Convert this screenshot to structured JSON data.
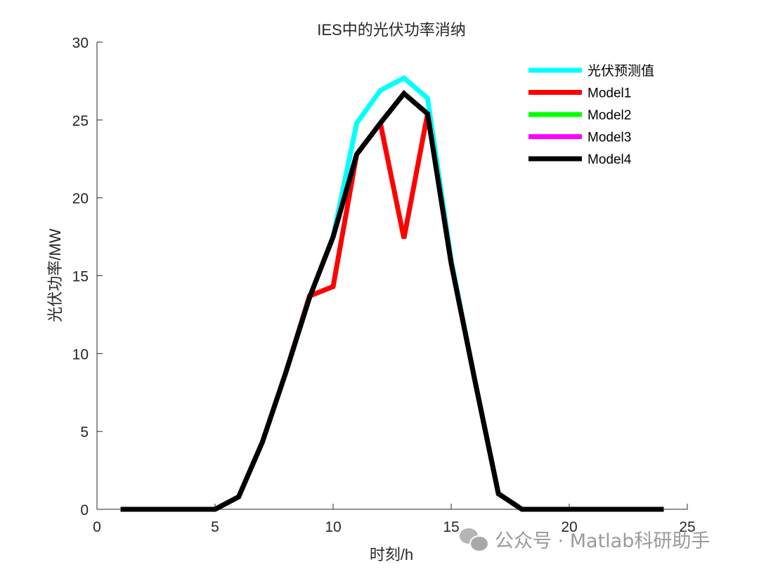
{
  "chart_data": {
    "type": "line",
    "title": "IES中的光伏功率消纳",
    "xlabel": "时刻/h",
    "ylabel": "光伏功率/MW",
    "xlim": [
      0,
      25
    ],
    "ylim": [
      0,
      30
    ],
    "xticks": [
      0,
      5,
      10,
      15,
      20,
      25
    ],
    "yticks": [
      0,
      5,
      10,
      15,
      20,
      25,
      30
    ],
    "grid": false,
    "legend_position": "upper right",
    "x": [
      1,
      2,
      3,
      4,
      5,
      6,
      7,
      8,
      9,
      10,
      11,
      12,
      13,
      14,
      15,
      16,
      17,
      18,
      19,
      20,
      21,
      22,
      23,
      24
    ],
    "series": [
      {
        "name": "光伏预测值",
        "color": "#00ffff",
        "values": [
          0,
          0,
          0,
          0,
          0,
          0.8,
          4.3,
          8.8,
          13.6,
          17.5,
          24.8,
          26.9,
          27.7,
          26.4,
          16.0,
          8.3,
          1.0,
          0,
          0,
          0,
          0,
          0,
          0,
          0
        ]
      },
      {
        "name": "Model1",
        "color": "#ff0000",
        "values": [
          0,
          0,
          0,
          0,
          0,
          0.8,
          4.3,
          8.8,
          13.7,
          14.3,
          22.8,
          24.8,
          17.4,
          25.4,
          15.8,
          8.3,
          1.0,
          0,
          0,
          0,
          0,
          0,
          0,
          0
        ]
      },
      {
        "name": "Model2",
        "color": "#00ff00",
        "values": [
          0,
          0,
          0,
          0,
          0,
          0.8,
          4.3,
          8.8,
          13.6,
          17.5,
          22.8,
          24.8,
          26.7,
          25.4,
          15.8,
          8.3,
          1.0,
          0,
          0,
          0,
          0,
          0,
          0,
          0
        ]
      },
      {
        "name": "Model3",
        "color": "#ff00ff",
        "values": [
          0,
          0,
          0,
          0,
          0,
          0.8,
          4.3,
          8.8,
          13.6,
          17.5,
          22.8,
          24.8,
          26.7,
          25.4,
          15.8,
          8.3,
          1.0,
          0,
          0,
          0,
          0,
          0,
          0,
          0
        ]
      },
      {
        "name": "Model4",
        "color": "#000000",
        "values": [
          0,
          0,
          0,
          0,
          0,
          0.8,
          4.3,
          8.8,
          13.6,
          17.5,
          22.8,
          24.8,
          26.7,
          25.4,
          15.8,
          8.3,
          1.0,
          0,
          0,
          0,
          0,
          0,
          0,
          0
        ]
      }
    ]
  },
  "watermark": {
    "text": "公众号 · Matlab科研助手",
    "icon": "wechat-icon"
  }
}
